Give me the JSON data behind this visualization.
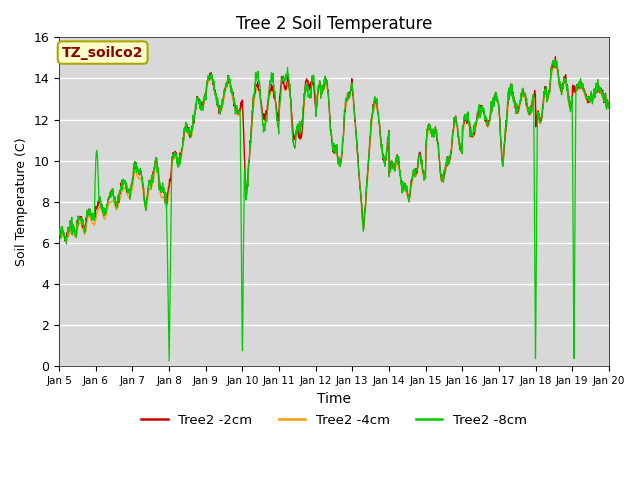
{
  "title": "Tree 2 Soil Temperature",
  "xlabel": "Time",
  "ylabel": "Soil Temperature (C)",
  "ylim": [
    0,
    16
  ],
  "xlim": [
    0,
    15
  ],
  "bg_color": "#e0e0e0",
  "annotation_text": "TZ_soilco2",
  "annotation_facecolor": "#ffffcc",
  "annotation_edgecolor": "#cccc00",
  "annotation_textcolor": "#8b0000",
  "xtick_labels": [
    "Jan 5",
    "Jan 6",
    "Jan 7",
    "Jan 8",
    "Jan 9",
    "Jan 10",
    "Jan 11",
    "Jan 12",
    "Jan 13",
    "Jan 14",
    "Jan 15",
    "Jan 16",
    "Jan 17",
    "Jan 18",
    "Jan 19",
    "Jan 20"
  ],
  "ytick_values": [
    0,
    2,
    4,
    6,
    8,
    10,
    12,
    14,
    16
  ],
  "legend_entries": [
    "Tree2 -2cm",
    "Tree2 -4cm",
    "Tree2 -8cm"
  ],
  "line_colors": [
    "#cc0000",
    "#ff9900",
    "#00cc00"
  ]
}
